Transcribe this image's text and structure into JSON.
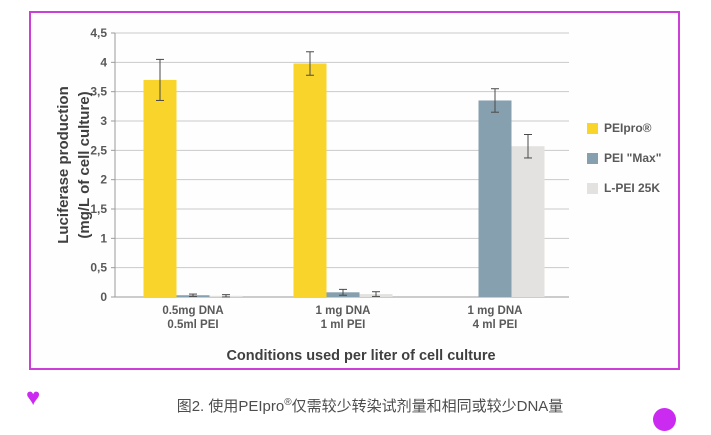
{
  "figure": {
    "border_color": "#cb3fd6"
  },
  "chart_data": {
    "type": "bar",
    "title": "",
    "ylabel": [
      "Luciferase production",
      "(mg/L of cell culture)"
    ],
    "xlabel": "Conditions used per liter of cell culture",
    "ylim": [
      0,
      4.5
    ],
    "ytick_step": 0.5,
    "ytick_labels": [
      "0",
      "0,5",
      "1",
      "1,5",
      "2",
      "2,5",
      "3",
      "3,5",
      "4",
      "4,5"
    ],
    "grid": true,
    "legend_position": "right",
    "categories": [
      [
        "0.5mg DNA",
        "0.5ml PEI"
      ],
      [
        "1 mg DNA",
        "1 ml PEI"
      ],
      [
        "1 mg DNA",
        "4 ml PEI"
      ]
    ],
    "series": [
      {
        "name": "PEIpro®",
        "color": "#f9d42a",
        "values": [
          3.7,
          3.98,
          null
        ],
        "errors": [
          0.35,
          0.2,
          null
        ]
      },
      {
        "name": "PEI \"Max\"",
        "color": "#87a0af",
        "values": [
          0.03,
          0.08,
          3.35
        ],
        "errors": [
          0.02,
          0.05,
          0.2
        ]
      },
      {
        "name": "L-PEI 25K",
        "color": "#e3e2e0",
        "values": [
          0.02,
          0.05,
          2.57
        ],
        "errors": [
          0.02,
          0.04,
          0.2
        ]
      }
    ],
    "colors": {
      "gridline": "#c9c9c9",
      "axis": "#9b9b9b",
      "error_bar": "#4a4a4a"
    }
  },
  "caption": {
    "prefix": "图2. 使用PEIpro",
    "sup": "®",
    "suffix": "仅需较少转染试剂量和相同或较少DNA量"
  },
  "decor": {
    "heart_glyph": "♥",
    "accent_color": "#cb2af0"
  }
}
